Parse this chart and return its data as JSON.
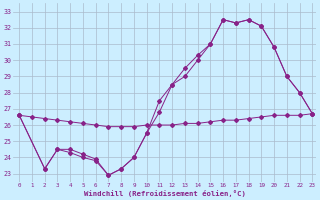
{
  "xlabel": "Windchill (Refroidissement éolien,°C)",
  "bg_color": "#cceeff",
  "line_color": "#882288",
  "grid_color": "#aabbcc",
  "xlim": [
    -0.5,
    23.3
  ],
  "ylim": [
    22.5,
    33.5
  ],
  "yticks": [
    23,
    24,
    25,
    26,
    27,
    28,
    29,
    30,
    31,
    32,
    33
  ],
  "xticks": [
    0,
    1,
    2,
    3,
    4,
    5,
    6,
    7,
    8,
    9,
    10,
    11,
    12,
    13,
    14,
    15,
    16,
    17,
    18,
    19,
    20,
    21,
    22,
    23
  ],
  "line1_x": [
    0,
    1,
    2,
    3,
    4,
    5,
    6,
    7,
    8,
    9,
    10,
    11,
    12,
    13,
    14,
    15,
    16,
    17,
    18,
    19,
    20,
    21,
    22,
    23
  ],
  "line1_y": [
    26.6,
    26.5,
    26.4,
    26.3,
    26.2,
    26.1,
    26.0,
    25.9,
    25.9,
    25.9,
    26.0,
    26.0,
    26.0,
    26.1,
    26.1,
    26.2,
    26.3,
    26.3,
    26.4,
    26.5,
    26.6,
    26.6,
    26.6,
    26.7
  ],
  "line2_x": [
    0,
    2,
    3,
    4,
    5,
    6,
    7,
    8,
    9,
    10,
    11,
    12,
    13,
    14,
    15,
    16,
    17,
    18,
    19,
    20,
    21,
    22,
    23
  ],
  "line2_y": [
    26.6,
    23.3,
    24.5,
    24.5,
    24.2,
    23.9,
    22.9,
    23.3,
    24.0,
    25.5,
    27.5,
    28.5,
    29.0,
    30.0,
    31.0,
    32.5,
    32.3,
    32.5,
    32.1,
    30.8,
    29.0,
    28.0,
    26.7
  ],
  "line3_x": [
    0,
    2,
    3,
    4,
    5,
    6,
    7,
    8,
    9,
    10,
    11,
    12,
    13,
    14,
    15,
    16,
    17,
    18,
    19,
    20,
    21,
    22,
    23
  ],
  "line3_y": [
    26.6,
    23.3,
    24.5,
    24.3,
    24.0,
    23.8,
    22.9,
    23.3,
    24.0,
    25.5,
    26.8,
    28.5,
    29.5,
    30.3,
    31.0,
    32.5,
    32.3,
    32.5,
    32.1,
    30.8,
    29.0,
    28.0,
    26.7
  ]
}
